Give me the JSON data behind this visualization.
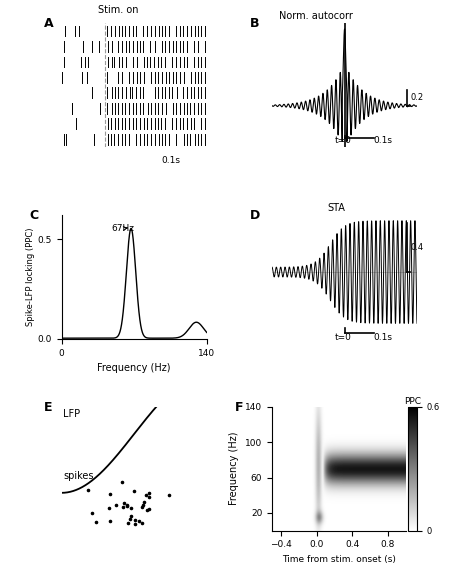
{
  "panel_labels": [
    "A",
    "B",
    "C",
    "D",
    "E",
    "F"
  ],
  "stim_on_text": "Stim. on",
  "scale_bar_A": "0.1s",
  "norm_autocorr_text": "Norm. autocorr",
  "scale_bar_B_y": "0.2",
  "scale_bar_B_x": "0.1s",
  "t0_label": "t=0",
  "freq_67": "67Hz",
  "ylabel_C": "Spike-LFP locking (PPC)",
  "xlabel_C": "Frequency (Hz)",
  "xlim_C": [
    0,
    140
  ],
  "ylim_C": [
    0,
    0.6
  ],
  "STA_text": "STA",
  "scale_bar_D_y": "0.4",
  "scale_bar_D_x": "0.1s",
  "LFP_text": "LFP",
  "spikes_text": "spikes",
  "ylabel_F": "Frequency (Hz)",
  "xlabel_F": "Time from stim. onset (s)",
  "PPC_text": "PPC",
  "colorbar_max": "0.6",
  "colorbar_min": "0",
  "background_color": "#ffffff"
}
